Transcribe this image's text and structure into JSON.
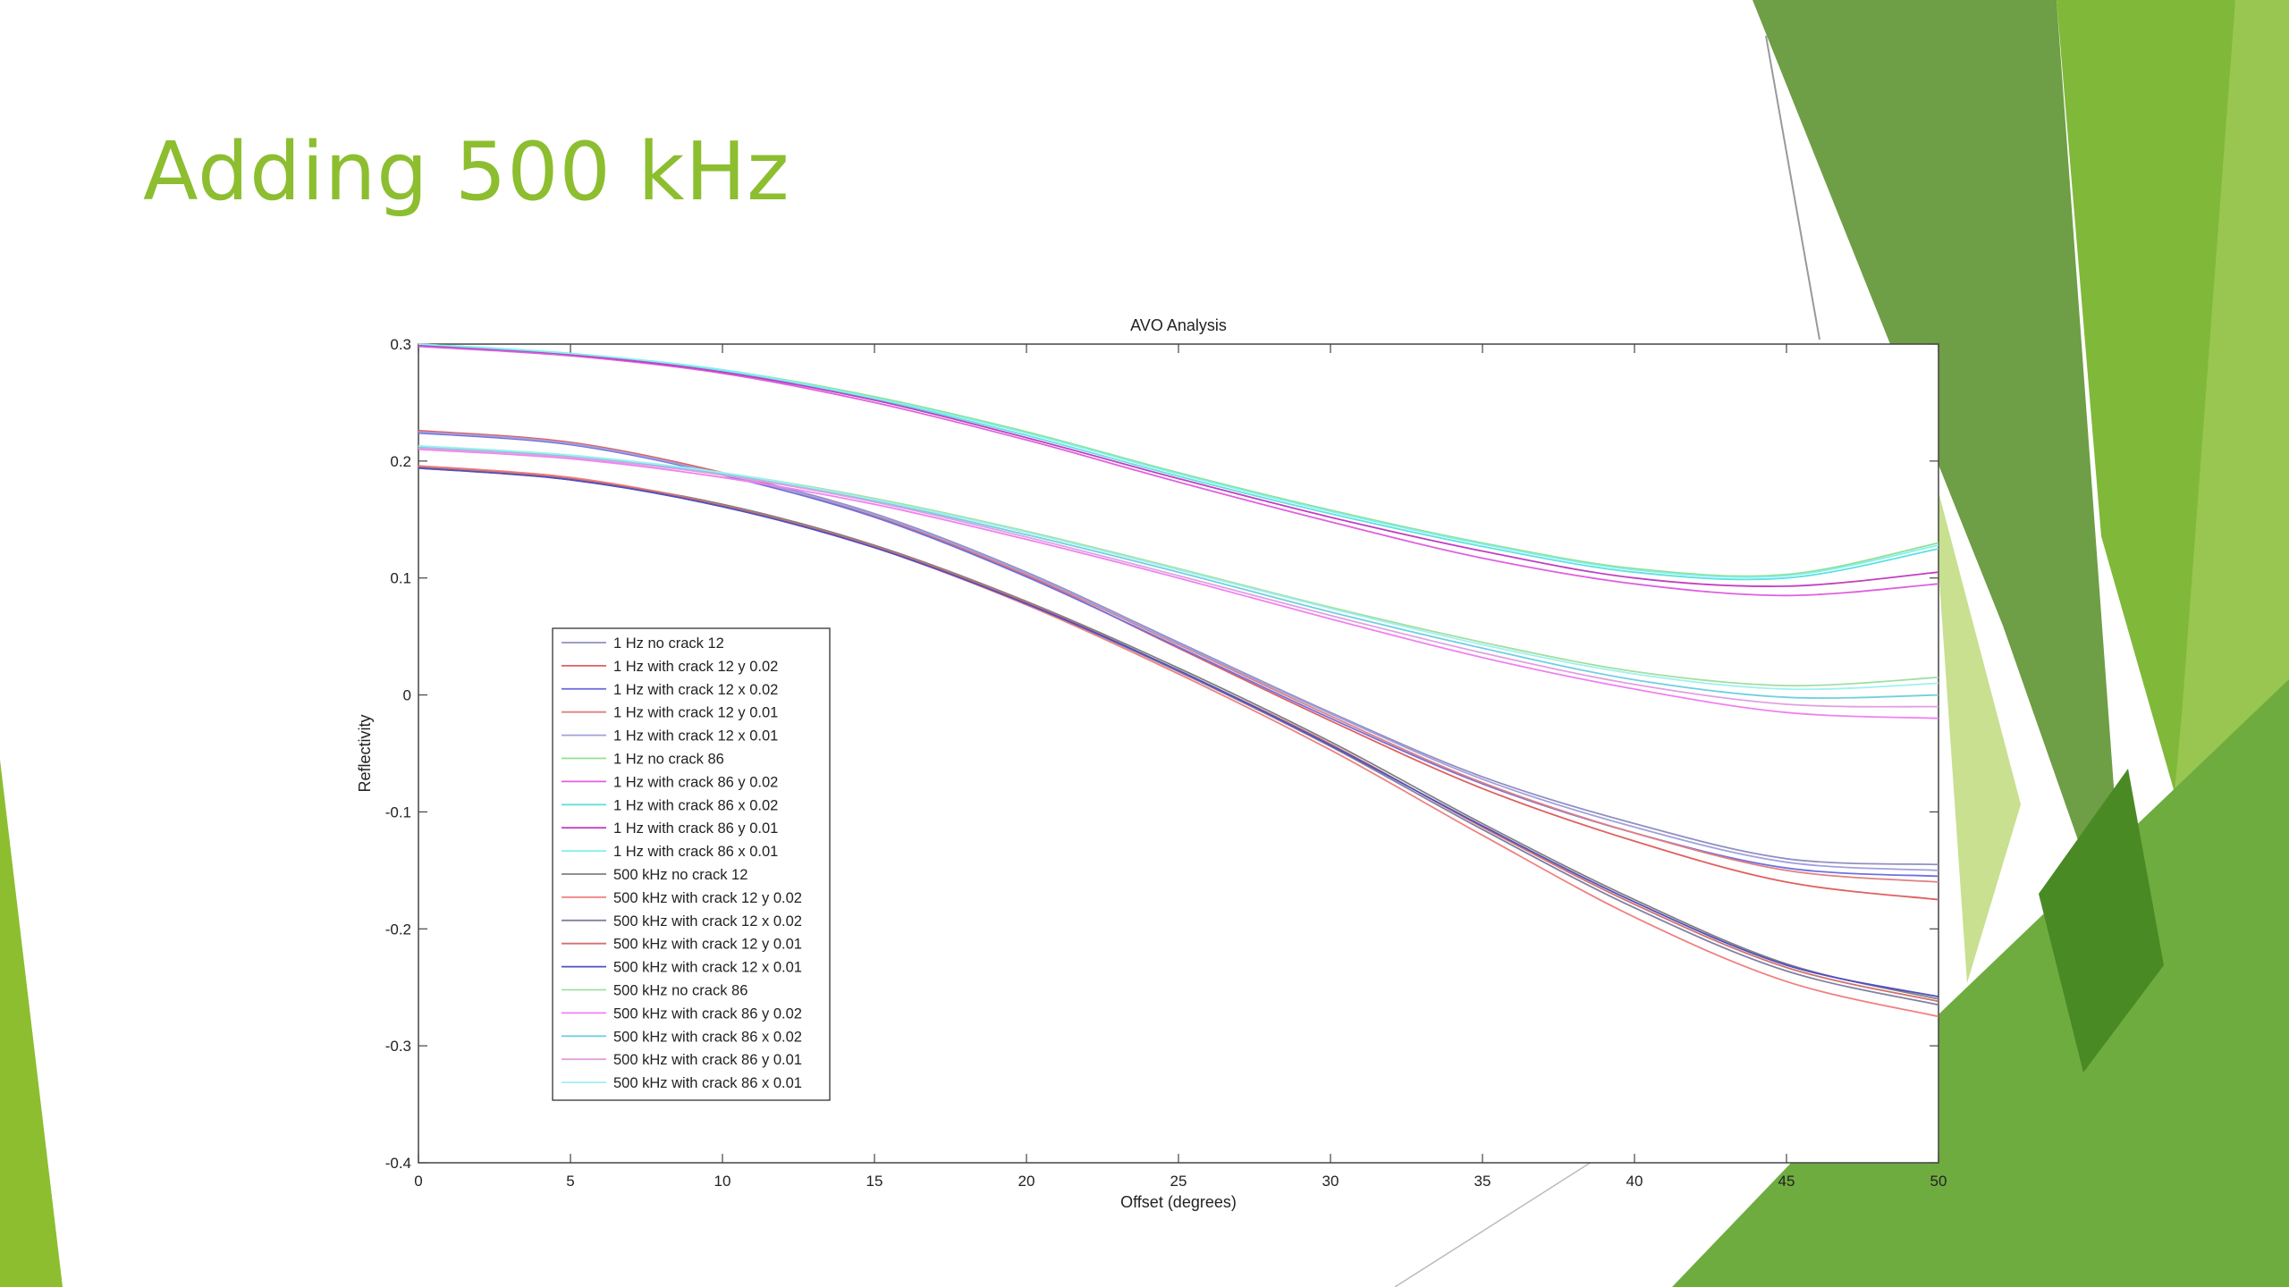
{
  "slide": {
    "title": "Adding 500 kHz",
    "accent": "#8cbe30",
    "decor_colors": [
      "#6e9e45",
      "#80b83a",
      "#98c650",
      "#c8e090",
      "#4a8a25"
    ]
  },
  "chart_data": {
    "type": "line",
    "title": "AVO Analysis",
    "xlabel": "Offset (degrees)",
    "ylabel": "Reflectivity",
    "xlim": [
      0,
      50
    ],
    "ylim": [
      -0.4,
      0.3
    ],
    "xticks": [
      "0",
      "5",
      "10",
      "15",
      "20",
      "25",
      "30",
      "35",
      "40",
      "45",
      "50"
    ],
    "yticks": [
      "0.3",
      "0.2",
      "0.1",
      "0",
      "-0.1",
      "-0.2",
      "-0.3",
      "-0.4"
    ],
    "grid": false,
    "legend_position": "lower-left",
    "x": [
      0,
      5,
      10,
      15,
      20,
      25,
      30,
      35,
      40,
      45,
      50
    ],
    "series": [
      {
        "name": "1 Hz no crack 12",
        "color": "#9090c0",
        "values": [
          0.225,
          0.215,
          0.19,
          0.155,
          0.105,
          0.045,
          -0.015,
          -0.07,
          -0.11,
          -0.14,
          -0.145
        ]
      },
      {
        "name": "1 Hz with crack 12 y 0.02",
        "color": "#e06060",
        "values": [
          0.226,
          0.216,
          0.19,
          0.153,
          0.102,
          0.04,
          -0.022,
          -0.08,
          -0.125,
          -0.16,
          -0.175
        ]
      },
      {
        "name": "1 Hz with crack 12 x 0.02",
        "color": "#7070e0",
        "values": [
          0.224,
          0.214,
          0.188,
          0.152,
          0.101,
          0.041,
          -0.02,
          -0.076,
          -0.118,
          -0.148,
          -0.155
        ]
      },
      {
        "name": "1 Hz with crack 12 y 0.01",
        "color": "#e08080",
        "values": [
          0.225,
          0.215,
          0.189,
          0.154,
          0.103,
          0.043,
          -0.018,
          -0.075,
          -0.118,
          -0.15,
          -0.16
        ]
      },
      {
        "name": "1 Hz with crack 12 x 0.01",
        "color": "#a0a0e0",
        "values": [
          0.225,
          0.215,
          0.189,
          0.154,
          0.104,
          0.044,
          -0.016,
          -0.072,
          -0.113,
          -0.143,
          -0.15
        ]
      },
      {
        "name": "1 Hz no crack 86",
        "color": "#90e090",
        "values": [
          0.3,
          0.292,
          0.278,
          0.255,
          0.225,
          0.19,
          0.158,
          0.13,
          0.108,
          0.103,
          0.13
        ]
      },
      {
        "name": "1 Hz with crack 86 y 0.02",
        "color": "#e060e0",
        "values": [
          0.298,
          0.29,
          0.275,
          0.25,
          0.218,
          0.182,
          0.148,
          0.117,
          0.095,
          0.085,
          0.095
        ]
      },
      {
        "name": "1 Hz with crack 86 x 0.02",
        "color": "#60e0e0",
        "values": [
          0.299,
          0.291,
          0.277,
          0.253,
          0.222,
          0.187,
          0.155,
          0.127,
          0.105,
          0.1,
          0.125
        ]
      },
      {
        "name": "1 Hz with crack 86 y 0.01",
        "color": "#c040c0",
        "values": [
          0.299,
          0.291,
          0.276,
          0.252,
          0.22,
          0.185,
          0.152,
          0.123,
          0.1,
          0.093,
          0.105
        ]
      },
      {
        "name": "1 Hz with crack 86 x 0.01",
        "color": "#80f0f0",
        "values": [
          0.3,
          0.292,
          0.278,
          0.254,
          0.224,
          0.189,
          0.157,
          0.129,
          0.107,
          0.102,
          0.128
        ]
      },
      {
        "name": "500 kHz no crack 12",
        "color": "#808080",
        "values": [
          0.195,
          0.185,
          0.163,
          0.128,
          0.08,
          0.023,
          -0.04,
          -0.11,
          -0.175,
          -0.23,
          -0.26
        ]
      },
      {
        "name": "500 kHz with crack 12 y 0.02",
        "color": "#f08080",
        "values": [
          0.196,
          0.186,
          0.162,
          0.126,
          0.077,
          0.018,
          -0.047,
          -0.12,
          -0.19,
          -0.245,
          -0.275
        ]
      },
      {
        "name": "500 kHz with crack 12 x 0.02",
        "color": "#8080a0",
        "values": [
          0.194,
          0.184,
          0.161,
          0.126,
          0.078,
          0.02,
          -0.044,
          -0.115,
          -0.182,
          -0.236,
          -0.265
        ]
      },
      {
        "name": "500 kHz with crack 12 y 0.01",
        "color": "#d07070",
        "values": [
          0.195,
          0.185,
          0.162,
          0.127,
          0.079,
          0.021,
          -0.042,
          -0.113,
          -0.179,
          -0.233,
          -0.262
        ]
      },
      {
        "name": "500 kHz with crack 12 x 0.01",
        "color": "#5050c0",
        "values": [
          0.194,
          0.184,
          0.161,
          0.126,
          0.078,
          0.021,
          -0.043,
          -0.112,
          -0.177,
          -0.231,
          -0.258
        ]
      },
      {
        "name": "500 kHz no crack 86",
        "color": "#a0e0a0",
        "values": [
          0.213,
          0.205,
          0.19,
          0.168,
          0.14,
          0.108,
          0.075,
          0.045,
          0.02,
          0.008,
          0.015
        ]
      },
      {
        "name": "500 kHz with crack 86 y 0.02",
        "color": "#f080f0",
        "values": [
          0.21,
          0.202,
          0.186,
          0.163,
          0.133,
          0.1,
          0.065,
          0.032,
          0.005,
          -0.015,
          -0.02
        ]
      },
      {
        "name": "500 kHz with crack 86 x 0.02",
        "color": "#70d0e0",
        "values": [
          0.212,
          0.204,
          0.189,
          0.166,
          0.137,
          0.105,
          0.071,
          0.04,
          0.013,
          -0.002,
          0.0
        ]
      },
      {
        "name": "500 kHz with crack 86 y 0.01",
        "color": "#e0a0e0",
        "values": [
          0.211,
          0.203,
          0.188,
          0.165,
          0.135,
          0.102,
          0.068,
          0.036,
          0.009,
          -0.008,
          -0.01
        ]
      },
      {
        "name": "500 kHz with crack 86 x 0.01",
        "color": "#a0f0f0",
        "values": [
          0.213,
          0.205,
          0.19,
          0.167,
          0.139,
          0.107,
          0.074,
          0.043,
          0.018,
          0.005,
          0.01
        ]
      }
    ]
  }
}
